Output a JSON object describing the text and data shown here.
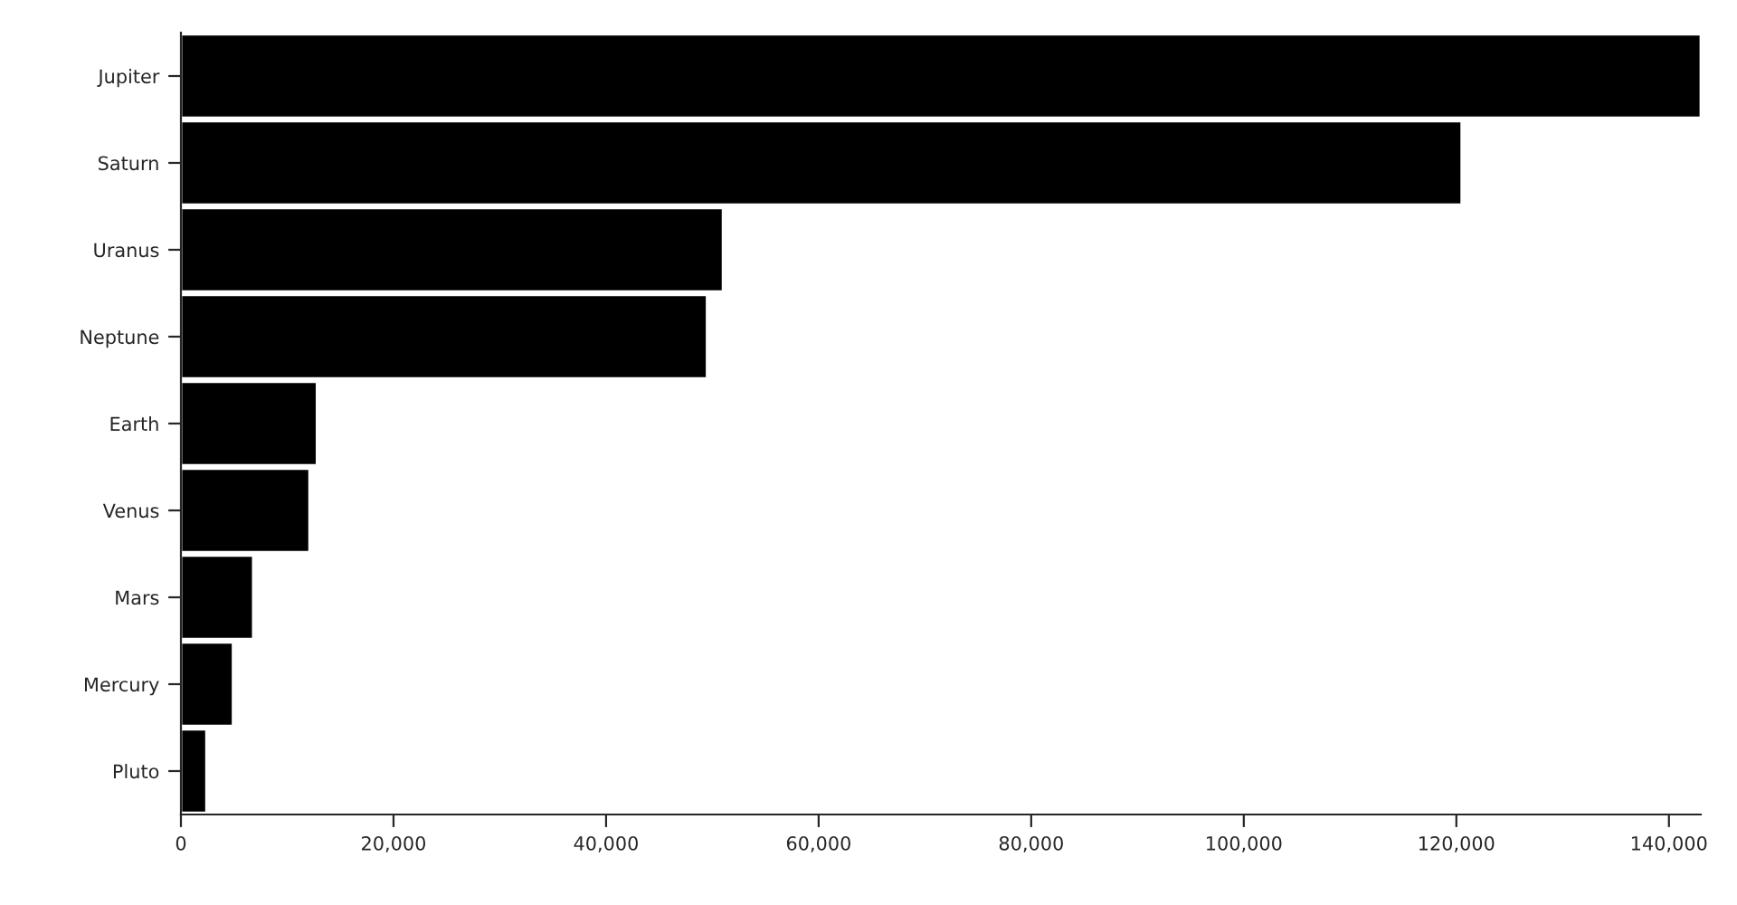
{
  "chart_data": {
    "type": "bar",
    "orientation": "horizontal",
    "categories": [
      "Jupiter",
      "Saturn",
      "Uranus",
      "Neptune",
      "Earth",
      "Venus",
      "Mars",
      "Mercury",
      "Pluto"
    ],
    "values": [
      143000,
      120500,
      51000,
      49500,
      12800,
      12100,
      6800,
      4900,
      2400
    ],
    "color": "#000000",
    "xlim": [
      0,
      143000
    ],
    "xticks": [
      {
        "value": 0,
        "label": "0"
      },
      {
        "value": 20000,
        "label": "20,000"
      },
      {
        "value": 40000,
        "label": "40,000"
      },
      {
        "value": 60000,
        "label": "60,000"
      },
      {
        "value": 80000,
        "label": "80,000"
      },
      {
        "value": 100000,
        "label": "100,000"
      },
      {
        "value": 120000,
        "label": "120,000"
      },
      {
        "value": 140000,
        "label": "140,000"
      }
    ],
    "grid": false,
    "legend": false
  }
}
